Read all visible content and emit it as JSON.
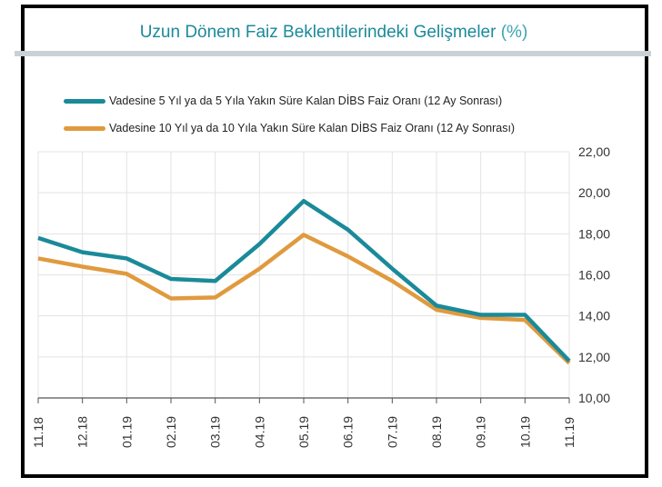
{
  "colors": {
    "series1": "#1a8a99",
    "series2": "#e09a3e",
    "title": "#1b8a9b"
  },
  "chart_data": {
    "type": "line",
    "title": "Uzun Dönem Faiz Beklentilerindeki Gelişmeler",
    "title_unit": "(%)",
    "categories": [
      "11.18",
      "12.18",
      "01.19",
      "02.19",
      "03.19",
      "04.19",
      "05.19",
      "06.19",
      "07.19",
      "08.19",
      "09.19",
      "10.19",
      "11.19"
    ],
    "series": [
      {
        "name": "Vadesine 5 Yıl ya da 5 Yıla Yakın Süre Kalan DİBS Faiz Oranı (12 Ay Sonrası)",
        "values": [
          17.8,
          17.1,
          16.8,
          15.8,
          15.7,
          17.5,
          19.6,
          18.2,
          16.3,
          14.5,
          14.05,
          14.05,
          11.8
        ]
      },
      {
        "name": "Vadesine 10 Yıl ya da 10 Yıla Yakın Süre Kalan DİBS Faiz Oranı (12 Ay Sonrası)",
        "values": [
          16.8,
          16.4,
          16.05,
          14.85,
          14.9,
          16.3,
          17.95,
          16.9,
          15.7,
          14.3,
          13.9,
          13.8,
          11.7
        ]
      }
    ],
    "ylim": [
      10,
      22
    ],
    "yticks": [
      "10,00",
      "12,00",
      "14,00",
      "16,00",
      "18,00",
      "20,00",
      "22,00"
    ],
    "y_axis_position": "right",
    "grid": true,
    "legend_position": "top"
  }
}
